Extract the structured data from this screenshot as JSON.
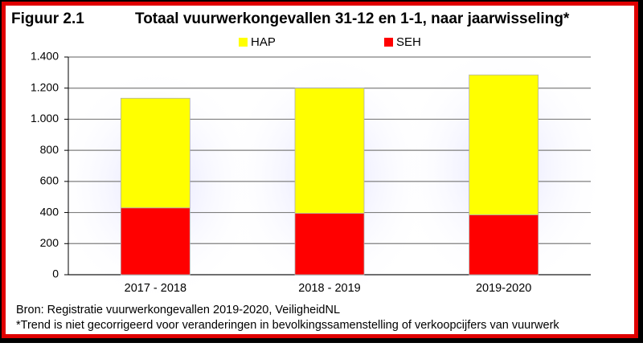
{
  "chart_data": {
    "type": "stacked-bar",
    "figure_label": "Figuur 2.1",
    "title": "Totaal vuurwerkongevallen 31-12 en 1-1, naar jaarwisseling*",
    "categories": [
      "2017 - 2018",
      "2018 - 2019",
      "2019-2020"
    ],
    "series": [
      {
        "name": "SEH",
        "color": "#ff0000",
        "values": [
          430,
          395,
          385
        ]
      },
      {
        "name": "HAP",
        "color": "#ffff00",
        "values": [
          705,
          805,
          900
        ]
      }
    ],
    "ylim": [
      0,
      1400
    ],
    "yticks": [
      0,
      200,
      400,
      600,
      800,
      {
        "value": 1000,
        "label": "1.000"
      },
      {
        "value": 1200,
        "label": "1.200"
      },
      {
        "value": 1400,
        "label": "1.400"
      }
    ],
    "grid": true,
    "source": "Bron: Registratie vuurwerkongevallen  2019-2020, VeiligheidNL",
    "footnote": "*Trend is niet gecorrigeerd voor veranderingen in bevolkingssamenstelling of verkoopcijfers van vuurwerk"
  }
}
